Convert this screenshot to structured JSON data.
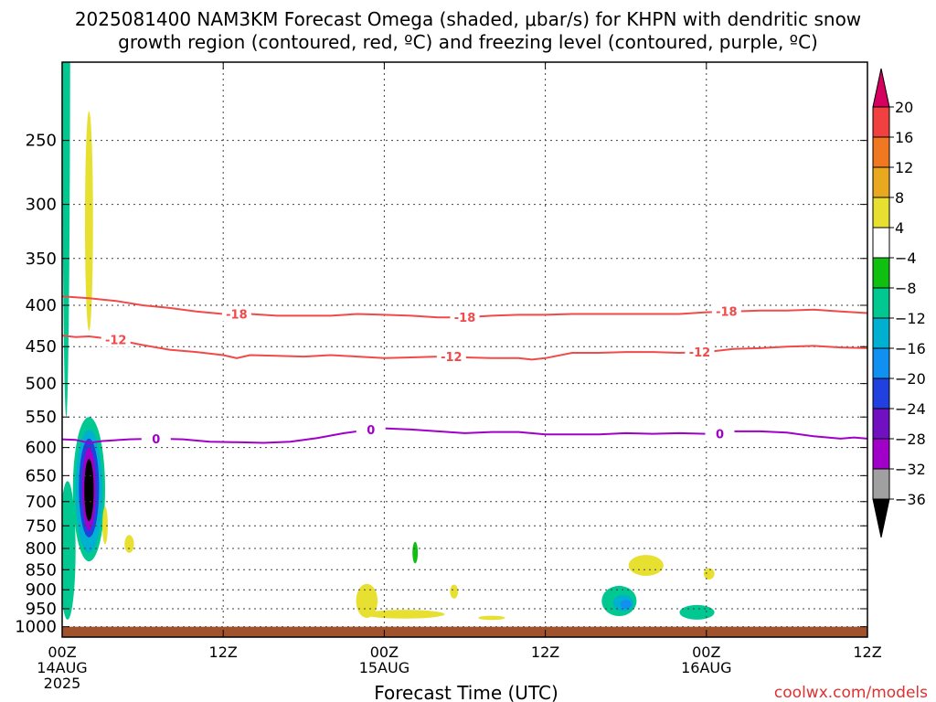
{
  "title_line1": "2025081400 NAM3KM Forecast Omega (shaded, μbar/s) for KHPN with dendritic snow",
  "title_line2": "growth region (contoured, red, ºC) and freezing level (contoured, purple, ºC)",
  "xlabel": "Forecast Time (UTC)",
  "watermark": "coolwx.com/models",
  "colors": {
    "dendritic": "#f04a4a",
    "freezing": "#a000c8",
    "ground": "#a0522d",
    "grid": "#404040"
  },
  "chart_data": {
    "type": "heatmap",
    "x_unit": "forecast hour",
    "xlim": [
      0,
      60
    ],
    "y_unit": "hPa",
    "ylim": [
      1030,
      200
    ],
    "y_scale": "log",
    "x_ticks": [
      {
        "hour": 0,
        "line1": "00Z",
        "line2": "14AUG",
        "line3": "2025"
      },
      {
        "hour": 12,
        "line1": "12Z",
        "line2": "",
        "line3": ""
      },
      {
        "hour": 24,
        "line1": "00Z",
        "line2": "15AUG",
        "line3": ""
      },
      {
        "hour": 36,
        "line1": "12Z",
        "line2": "",
        "line3": ""
      },
      {
        "hour": 48,
        "line1": "00Z",
        "line2": "16AUG",
        "line3": ""
      },
      {
        "hour": 60,
        "line1": "12Z",
        "line2": "",
        "line3": ""
      }
    ],
    "y_ticks": [
      250,
      300,
      350,
      400,
      450,
      500,
      550,
      600,
      650,
      700,
      750,
      800,
      850,
      900,
      950,
      1000
    ],
    "grid": true,
    "colorbar": {
      "levels": [
        "20",
        "16",
        "12",
        "8",
        "4",
        "−4",
        "−8",
        "−12",
        "−16",
        "−20",
        "−24",
        "−28",
        "−32",
        "−36"
      ],
      "colors": [
        "#d60060",
        "#f04040",
        "#f07820",
        "#e8a820",
        "#e8e030",
        "#ffffff",
        "#10c010",
        "#00c890",
        "#00b0d0",
        "#1090f0",
        "#2040e0",
        "#7010c0",
        "#a000c8",
        "#a0a0a0",
        "#000000"
      ]
    },
    "contours": [
      {
        "label": "-18",
        "color": "#f04a4a",
        "points": [
          [
            0,
            390
          ],
          [
            2,
            392
          ],
          [
            4,
            395
          ],
          [
            6,
            400
          ],
          [
            8,
            403
          ],
          [
            10,
            407
          ],
          [
            12,
            410
          ],
          [
            14,
            410
          ],
          [
            16,
            412
          ],
          [
            18,
            412
          ],
          [
            20,
            412
          ],
          [
            22,
            410
          ],
          [
            24,
            411
          ],
          [
            26,
            412
          ],
          [
            28,
            414
          ],
          [
            30,
            414
          ],
          [
            32,
            412
          ],
          [
            34,
            411
          ],
          [
            36,
            411
          ],
          [
            38,
            410
          ],
          [
            40,
            410
          ],
          [
            42,
            410
          ],
          [
            44,
            410
          ],
          [
            46,
            410
          ],
          [
            48,
            408
          ],
          [
            50,
            407
          ],
          [
            52,
            406
          ],
          [
            54,
            406
          ],
          [
            56,
            405
          ],
          [
            58,
            407
          ],
          [
            60,
            409
          ]
        ],
        "label_hours": [
          13,
          30,
          49.5
        ]
      },
      {
        "label": "-12",
        "color": "#f04a4a",
        "points": [
          [
            0,
            436
          ],
          [
            1,
            438
          ],
          [
            2,
            437
          ],
          [
            3,
            439
          ],
          [
            4,
            441
          ],
          [
            6,
            448
          ],
          [
            8,
            454
          ],
          [
            10,
            457
          ],
          [
            12,
            461
          ],
          [
            13,
            465
          ],
          [
            14,
            461
          ],
          [
            16,
            462
          ],
          [
            18,
            463
          ],
          [
            20,
            461
          ],
          [
            22,
            463
          ],
          [
            24,
            465
          ],
          [
            26,
            464
          ],
          [
            28,
            463
          ],
          [
            30,
            464
          ],
          [
            32,
            465
          ],
          [
            34,
            465
          ],
          [
            35,
            467
          ],
          [
            36,
            465
          ],
          [
            38,
            458
          ],
          [
            40,
            458
          ],
          [
            42,
            457
          ],
          [
            44,
            457
          ],
          [
            46,
            458
          ],
          [
            48,
            457
          ],
          [
            50,
            453
          ],
          [
            52,
            452
          ],
          [
            54,
            450
          ],
          [
            56,
            449
          ],
          [
            58,
            451
          ],
          [
            60,
            452
          ]
        ],
        "label_hours": [
          4,
          29,
          47.5
        ]
      },
      {
        "label": "0",
        "color": "#a000c8",
        "points": [
          [
            0,
            586
          ],
          [
            1,
            587
          ],
          [
            2,
            592
          ],
          [
            3,
            589
          ],
          [
            5,
            586
          ],
          [
            7,
            585
          ],
          [
            9,
            586
          ],
          [
            11,
            590
          ],
          [
            13,
            591
          ],
          [
            15,
            592
          ],
          [
            17,
            590
          ],
          [
            19,
            584
          ],
          [
            21,
            576
          ],
          [
            23,
            570
          ],
          [
            24,
            568
          ],
          [
            26,
            570
          ],
          [
            28,
            573
          ],
          [
            30,
            576
          ],
          [
            32,
            574
          ],
          [
            34,
            574
          ],
          [
            36,
            578
          ],
          [
            38,
            578
          ],
          [
            40,
            578
          ],
          [
            42,
            576
          ],
          [
            44,
            577
          ],
          [
            46,
            576
          ],
          [
            48,
            577
          ],
          [
            50,
            573
          ],
          [
            52,
            573
          ],
          [
            54,
            575
          ],
          [
            56,
            581
          ],
          [
            58,
            585
          ],
          [
            59,
            583
          ],
          [
            60,
            585
          ]
        ],
        "label_hours": [
          7,
          23,
          49
        ]
      }
    ],
    "omega_regions": [
      {
        "value": -8,
        "hour": 0.3,
        "pressure": 300,
        "hour_radius": 0.3,
        "pressure_radius": 250
      },
      {
        "value": 4,
        "hour": 2,
        "pressure": 330,
        "hour_radius": 0.3,
        "pressure_radius": 100
      },
      {
        "value": -8,
        "hour": 2,
        "pressure": 690,
        "hour_radius": 1.2,
        "pressure_radius": 140
      },
      {
        "value": -12,
        "hour": 2,
        "pressure": 690,
        "hour_radius": 1.0,
        "pressure_radius": 120
      },
      {
        "value": -20,
        "hour": 2,
        "pressure": 680,
        "hour_radius": 0.75,
        "pressure_radius": 95
      },
      {
        "value": -28,
        "hour": 2,
        "pressure": 680,
        "hour_radius": 0.5,
        "pressure_radius": 80
      },
      {
        "value": -36,
        "hour": 2,
        "pressure": 680,
        "hour_radius": 0.35,
        "pressure_radius": 60
      },
      {
        "value": -8,
        "hour": 0.4,
        "pressure": 820,
        "hour_radius": 0.6,
        "pressure_radius": 160
      },
      {
        "value": 4,
        "hour": 3.2,
        "pressure": 750,
        "hour_radius": 0.2,
        "pressure_radius": 40
      },
      {
        "value": 4,
        "hour": 5,
        "pressure": 790,
        "hour_radius": 0.35,
        "pressure_radius": 20
      },
      {
        "value": -4,
        "hour": 26.3,
        "pressure": 810,
        "hour_radius": 0.2,
        "pressure_radius": 25
      },
      {
        "value": 4,
        "hour": 22.7,
        "pressure": 930,
        "hour_radius": 0.8,
        "pressure_radius": 45
      },
      {
        "value": 4,
        "hour": 25.5,
        "pressure": 965,
        "hour_radius": 3.0,
        "pressure_radius": 12
      },
      {
        "value": 4,
        "hour": 29.2,
        "pressure": 905,
        "hour_radius": 0.3,
        "pressure_radius": 18
      },
      {
        "value": 4,
        "hour": 32,
        "pressure": 975,
        "hour_radius": 1.0,
        "pressure_radius": 6
      },
      {
        "value": -8,
        "hour": 41.5,
        "pressure": 930,
        "hour_radius": 1.3,
        "pressure_radius": 40
      },
      {
        "value": -12,
        "hour": 41.8,
        "pressure": 935,
        "hour_radius": 0.75,
        "pressure_radius": 22
      },
      {
        "value": -16,
        "hour": 42,
        "pressure": 938,
        "hour_radius": 0.4,
        "pressure_radius": 12
      },
      {
        "value": 4,
        "hour": 43.5,
        "pressure": 840,
        "hour_radius": 1.3,
        "pressure_radius": 25
      },
      {
        "value": 4,
        "hour": 48.2,
        "pressure": 860,
        "hour_radius": 0.4,
        "pressure_radius": 14
      },
      {
        "value": -8,
        "hour": 47.3,
        "pressure": 960,
        "hour_radius": 1.3,
        "pressure_radius": 20
      }
    ],
    "ground_pressure": 1000
  }
}
